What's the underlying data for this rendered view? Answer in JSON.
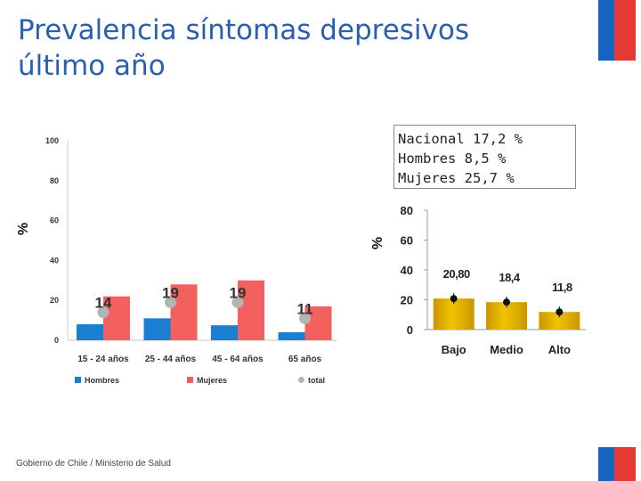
{
  "title": {
    "line1": "Prevalencia síntomas depresivos",
    "line2": "último año"
  },
  "stats": {
    "line1": "Nacional 17,2  %",
    "line2": "Hombres 8,5  %",
    "line3": "Mujeres 25,7  %"
  },
  "footer": "Gobierno de Chile / Ministerio de Salud",
  "colors": {
    "title": "#2a5fb0",
    "hombres": "#1a7fd0",
    "mujeres": "#f2615e",
    "total": "#b4b4b4",
    "gold": "#f2c200",
    "flag_blue": "#1565c0",
    "flag_red": "#e53935"
  },
  "chart_data": [
    {
      "type": "bar",
      "ylabel": "%",
      "ylim": [
        0,
        100
      ],
      "yticks": [
        0,
        20,
        40,
        60,
        80,
        100
      ],
      "categories": [
        "15 - 24 años",
        "25 - 44 años",
        "45 - 64 años",
        "65 años"
      ],
      "series": [
        {
          "name": "Hombres",
          "values": [
            8,
            11,
            7.5,
            4
          ]
        },
        {
          "name": "Mujeres",
          "values": [
            22,
            28,
            30,
            17
          ]
        },
        {
          "name": "total",
          "values": [
            14,
            19,
            19,
            11
          ]
        }
      ],
      "data_labels": [
        "14",
        "19",
        "19",
        "11"
      ],
      "legend": [
        "Hombres",
        "Mujeres",
        "total"
      ]
    },
    {
      "type": "bar",
      "ylabel": "%",
      "ylim": [
        0,
        80
      ],
      "yticks": [
        0,
        20,
        40,
        60,
        80
      ],
      "categories": [
        "Bajo",
        "Medio",
        "Alto"
      ],
      "values": [
        20.8,
        18.4,
        11.8
      ],
      "data_labels": [
        "20,80",
        "18,4",
        "11,8"
      ]
    }
  ]
}
